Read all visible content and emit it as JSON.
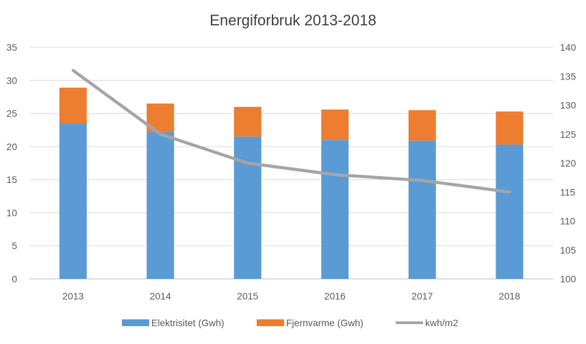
{
  "chart_data": {
    "type": "bar",
    "title": "Energiforbruk 2013-2018",
    "categories": [
      "2013",
      "2014",
      "2015",
      "2016",
      "2017",
      "2018"
    ],
    "stacked": true,
    "series": [
      {
        "name": "Elektrisitet (Gwh)",
        "type": "bar",
        "axis": "left",
        "color": "#5B9BD5",
        "values": [
          23.5,
          22.2,
          21.5,
          21.0,
          20.9,
          20.3
        ]
      },
      {
        "name": "Fjernvarme (Gwh)",
        "type": "bar",
        "axis": "left",
        "color": "#ED7D31",
        "values": [
          5.4,
          4.3,
          4.5,
          4.6,
          4.6,
          5.0
        ]
      },
      {
        "name": "kwh/m2",
        "type": "line",
        "axis": "right",
        "color": "#A5A5A5",
        "values": [
          136,
          125,
          120,
          118,
          117,
          115
        ]
      }
    ],
    "y_left": {
      "min": 0,
      "max": 35,
      "step": 5,
      "ticks": [
        "0",
        "5",
        "10",
        "15",
        "20",
        "25",
        "30",
        "35"
      ]
    },
    "y_right": {
      "min": 100,
      "max": 140,
      "step": 5,
      "ticks": [
        "100",
        "105",
        "110",
        "115",
        "120",
        "125",
        "130",
        "135",
        "140"
      ]
    },
    "grid": true,
    "legend_position": "bottom"
  }
}
